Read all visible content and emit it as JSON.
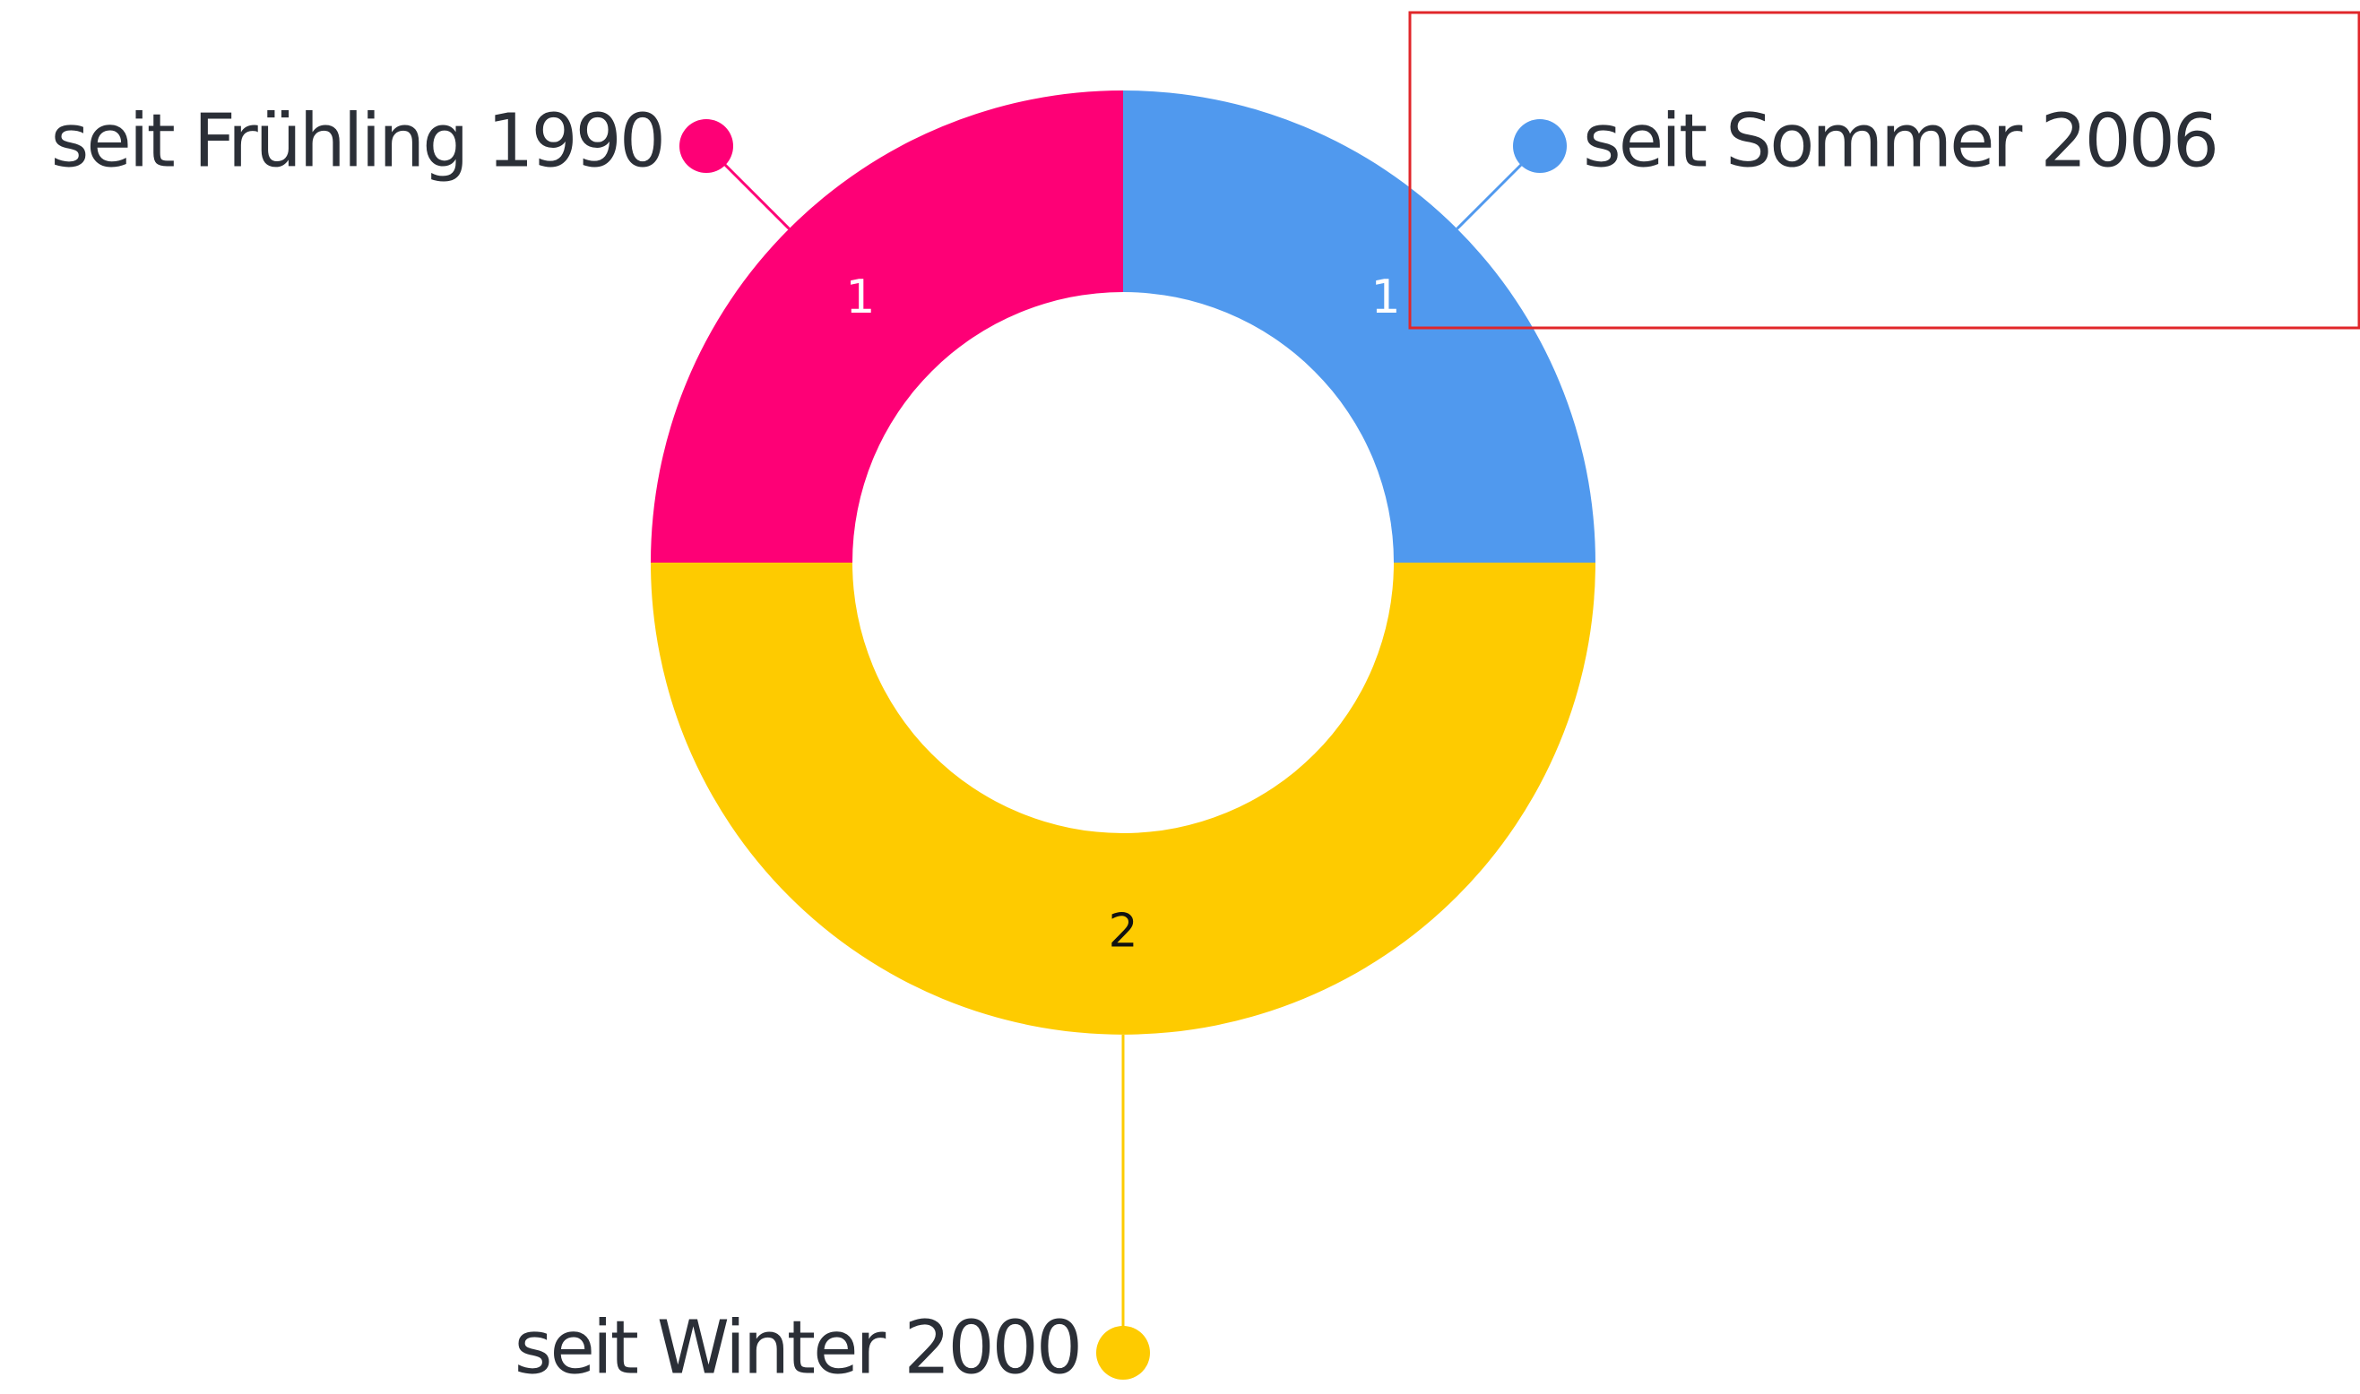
{
  "chart_data": {
    "type": "donut",
    "categories": [
      "seit Sommer 2006",
      "seit Winter 2000",
      "seit Frühling 1990"
    ],
    "values": [
      1,
      2,
      1
    ],
    "colors": [
      "#5099ee",
      "#fecb00",
      "#fe0076"
    ]
  }
}
